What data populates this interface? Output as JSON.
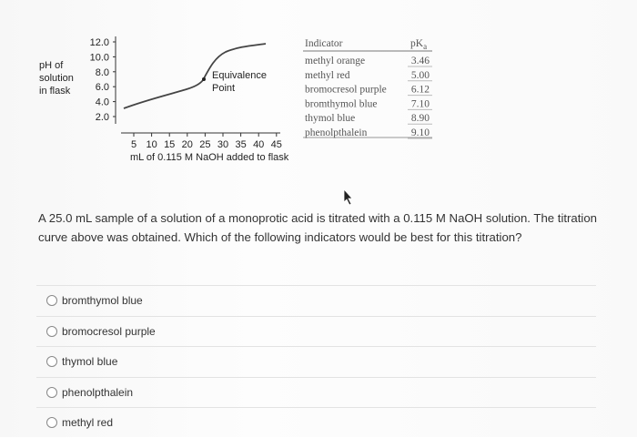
{
  "graph": {
    "y_axis_label": [
      "pH of",
      "solution",
      "in flask"
    ],
    "y_ticks": [
      "12.0",
      "10.0",
      "8.0",
      "6.0",
      "4.0",
      "2.0"
    ],
    "x_ticks": [
      "5",
      "10",
      "15",
      "20",
      "25",
      "30",
      "35",
      "40",
      "45"
    ],
    "x_axis_label": "mL of 0.115 M NaOH added to flask",
    "annotation": [
      "Equivalence",
      "Point"
    ]
  },
  "table": {
    "header": {
      "indicator": "Indicator",
      "pk": "pK",
      "pk_sub": "a"
    },
    "rows": [
      [
        "methyl orange",
        "3.46"
      ],
      [
        "methyl red",
        "5.00"
      ],
      [
        "bromocresol purple",
        "6.12"
      ],
      [
        "bromthymol blue",
        "7.10"
      ],
      [
        "thymol blue",
        "8.90"
      ],
      [
        "phenolpthalein",
        "9.10"
      ]
    ]
  },
  "question": "A 25.0 mL sample of a solution of a monoprotic acid is titrated with a 0.115 M NaOH solution. The titration curve above was obtained. Which of the following indicators would be best for this titration?",
  "options": [
    "bromthymol blue",
    "bromocresol purple",
    "thymol blue",
    "phenolpthalein",
    "methyl red"
  ]
}
